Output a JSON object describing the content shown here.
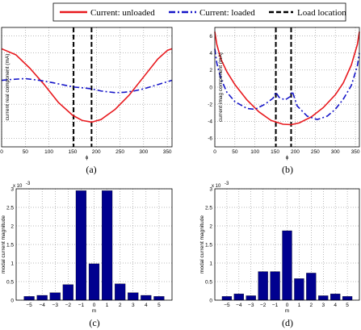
{
  "legend": {
    "items": [
      {
        "label": "Current: unloaded",
        "color": "#e8191e",
        "dash": "solid"
      },
      {
        "label": "Current: loaded",
        "color": "#1515c8",
        "dash": "dashdot"
      },
      {
        "label": "Load location",
        "color": "#000000",
        "dash": "dashed"
      }
    ]
  },
  "chart_data": [
    {
      "panel": "(a)",
      "type": "line",
      "xlabel": "ϕ",
      "ylabel": "current real component (mA)",
      "xlim": [
        0,
        360
      ],
      "ylim": [
        -7,
        7
      ],
      "xticks": [
        0,
        50,
        100,
        150,
        200,
        250,
        300,
        350
      ],
      "yticks": [
        -6,
        -4,
        -2,
        0,
        2,
        4,
        6
      ],
      "grid": true,
      "series": [
        {
          "name": "Current: unloaded",
          "color": "#e8191e",
          "x": [
            0,
            30,
            60,
            90,
            120,
            150,
            170,
            190,
            210,
            240,
            270,
            300,
            330,
            350,
            360
          ],
          "y": [
            4.5,
            3.8,
            2.2,
            0.3,
            -1.8,
            -3.3,
            -3.9,
            -4.1,
            -3.8,
            -2.6,
            -0.9,
            1.2,
            3.3,
            4.3,
            4.5
          ]
        },
        {
          "name": "Current: loaded",
          "color": "#1515c8",
          "x": [
            0,
            20,
            50,
            80,
            110,
            140,
            155,
            175,
            190,
            210,
            240,
            260,
            280,
            300,
            330,
            360
          ],
          "y": [
            0.8,
            0.9,
            1.0,
            0.8,
            0.5,
            0.15,
            0.0,
            -0.1,
            -0.2,
            -0.45,
            -0.65,
            -0.6,
            -0.45,
            -0.2,
            0.3,
            0.8
          ]
        }
      ],
      "vlines": [
        152,
        190
      ]
    },
    {
      "panel": "(b)",
      "type": "line",
      "xlabel": "ϕ",
      "ylabel": "current imag component (mA)",
      "xlim": [
        0,
        360
      ],
      "ylim": [
        -7,
        7
      ],
      "xticks": [
        0,
        50,
        100,
        150,
        200,
        250,
        300,
        350
      ],
      "yticks": [
        -6,
        -4,
        -2,
        0,
        2,
        4,
        6
      ],
      "grid": true,
      "series": [
        {
          "name": "Current: unloaded",
          "color": "#e8191e",
          "x": [
            0,
            5,
            15,
            30,
            50,
            80,
            110,
            140,
            170,
            190,
            210,
            240,
            270,
            300,
            320,
            340,
            355,
            360
          ],
          "y": [
            6.5,
            5.0,
            3.3,
            1.8,
            0.3,
            -1.5,
            -2.9,
            -3.9,
            -4.35,
            -4.4,
            -4.2,
            -3.5,
            -2.4,
            -0.9,
            0.5,
            2.6,
            5.0,
            6.5
          ]
        },
        {
          "name": "Current: loaded",
          "color": "#1515c8",
          "x": [
            0,
            5,
            15,
            30,
            50,
            80,
            100,
            125,
            145,
            152,
            160,
            175,
            188,
            193,
            205,
            230,
            255,
            280,
            300,
            320,
            340,
            355,
            360
          ],
          "y": [
            4.5,
            2.8,
            1.0,
            -0.6,
            -1.7,
            -2.5,
            -2.6,
            -2.0,
            -1.3,
            -0.6,
            -1.2,
            -1.5,
            -1.1,
            -0.5,
            -2.2,
            -3.4,
            -3.8,
            -3.4,
            -2.6,
            -1.4,
            0.2,
            2.5,
            4.0
          ]
        }
      ],
      "vlines": [
        152,
        190
      ]
    },
    {
      "panel": "(c)",
      "type": "bar",
      "xlabel": "m",
      "ylabel": "modal current magnitude",
      "exponent_label": "x 10",
      "exponent_power": "-3",
      "categories": [
        "−5",
        "−4",
        "−3",
        "−2",
        "−1",
        "0",
        "1",
        "2",
        "3",
        "4",
        "5"
      ],
      "values": [
        0.1,
        0.13,
        0.2,
        0.42,
        2.95,
        0.98,
        2.95,
        0.44,
        0.2,
        0.13,
        0.1
      ],
      "ylim": [
        0,
        3
      ],
      "yticks": [
        "0",
        "0.5",
        "1",
        "1.5",
        "2",
        "2.5",
        "3"
      ],
      "grid": true,
      "color": "#00008f"
    },
    {
      "panel": "(d)",
      "type": "bar",
      "xlabel": "m",
      "ylabel": "modal current magnitude",
      "exponent_label": "x 10",
      "exponent_power": "-3",
      "categories": [
        "−5",
        "−4",
        "−3",
        "−2",
        "−1",
        "0",
        "1",
        "2",
        "3",
        "4",
        "5"
      ],
      "values": [
        0.1,
        0.17,
        0.12,
        0.77,
        0.77,
        1.87,
        0.58,
        0.73,
        0.12,
        0.17,
        0.1
      ],
      "ylim": [
        0,
        3
      ],
      "yticks": [
        "0",
        "0.5",
        "1",
        "1.5",
        "2",
        "2.5",
        "3"
      ],
      "grid": true,
      "color": "#00008f"
    }
  ]
}
